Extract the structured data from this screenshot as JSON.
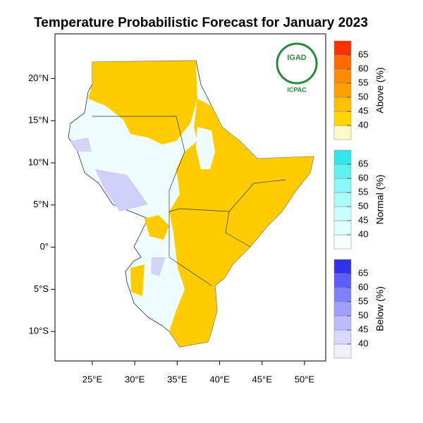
{
  "title": "Temperature Probabilistic Forecast for January 2023",
  "map": {
    "lonlim": [
      20.6,
      52.5
    ],
    "latlim": [
      -13.5,
      25.3
    ],
    "lon_ticks": [
      {
        "value": 25,
        "label": "25°E"
      },
      {
        "value": 30,
        "label": "30°E"
      },
      {
        "value": 35,
        "label": "35°E"
      },
      {
        "value": 40,
        "label": "40°E"
      },
      {
        "value": 45,
        "label": "45°E"
      },
      {
        "value": 50,
        "label": "50°E"
      }
    ],
    "lat_ticks": [
      {
        "value": 20,
        "label": "20°N"
      },
      {
        "value": 15,
        "label": "15°N"
      },
      {
        "value": 10,
        "label": "10°N"
      },
      {
        "value": 5,
        "label": "5°N"
      },
      {
        "value": 0,
        "label": "0°"
      },
      {
        "value": -5,
        "label": "5°S"
      },
      {
        "value": -10,
        "label": "10°S"
      }
    ]
  },
  "logo": {
    "name": "IGAD",
    "org": "ICPAC"
  },
  "legends": [
    {
      "title": "Above (%)",
      "levels": [
        40,
        45,
        50,
        55,
        60,
        65
      ],
      "colors": [
        "#fff9c8",
        "#ffd700",
        "#ffc000",
        "#ffa000",
        "#ff8a00",
        "#ff6a00",
        "#ff3000"
      ]
    },
    {
      "title": "Normal (%)",
      "levels": [
        40,
        45,
        50,
        55,
        60,
        65
      ],
      "colors": [
        "#f4ffff",
        "#e0ffff",
        "#c8ffff",
        "#a8fcfc",
        "#88f8f8",
        "#60f2f2",
        "#30e8e8"
      ]
    },
    {
      "title": "Below (%)",
      "levels": [
        40,
        45,
        50,
        55,
        60,
        65
      ],
      "colors": [
        "#f0f0ff",
        "#d8d8ff",
        "#bcbcff",
        "#a0a0ff",
        "#8080ff",
        "#5c5cff",
        "#3030ee"
      ]
    }
  ]
}
